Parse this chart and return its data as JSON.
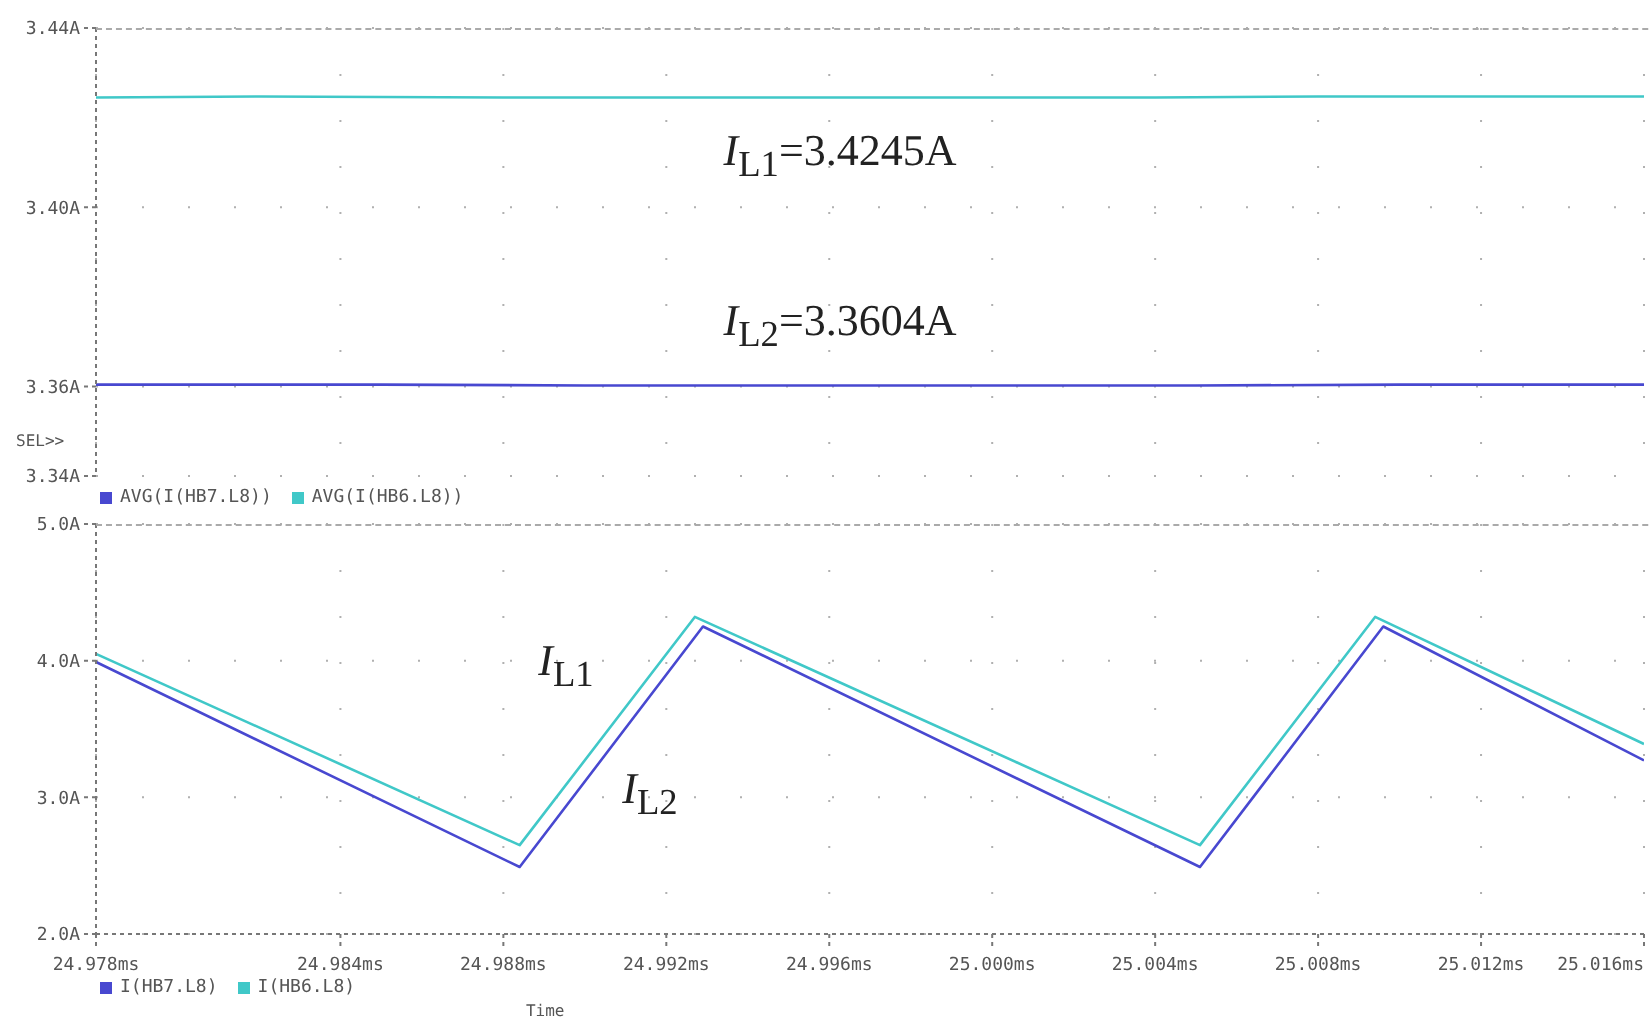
{
  "chart_data": [
    {
      "type": "line",
      "xlim": [
        24.978,
        25.016
      ],
      "ylim": [
        3.34,
        3.44
      ],
      "xticks": [
        24.978,
        24.984,
        24.988,
        24.992,
        24.996,
        25.0,
        25.004,
        25.008,
        25.012,
        25.016
      ],
      "yticks": [
        {
          "value": 3.34,
          "label": "3.34A"
        },
        {
          "value": 3.36,
          "label": "3.36A"
        },
        {
          "value": 3.4,
          "label": "3.40A"
        },
        {
          "value": 3.44,
          "label": "3.44A"
        }
      ],
      "tick_labels": "y",
      "grid": true,
      "legend": "bottom",
      "marker": "none",
      "line_style": "solid",
      "series": [
        {
          "name": "AVG(I(HB7.L8))",
          "color": "#4848d0",
          "x": [
            24.978,
            24.985,
            24.99,
            25.005,
            25.01,
            25.016
          ],
          "values": [
            3.3604,
            3.3604,
            3.3602,
            3.3602,
            3.3604,
            3.3604
          ]
        },
        {
          "name": "AVG(I(HB6.L8))",
          "color": "#40c8c8",
          "x": [
            24.978,
            24.982,
            24.988,
            25.004,
            25.008,
            25.016
          ],
          "values": [
            3.4245,
            3.4247,
            3.4245,
            3.4245,
            3.4247,
            3.4247
          ]
        }
      ],
      "annotations": [
        "I$_{L1}$=3.4245A",
        "I$_{L2}$=3.3604A",
        "SEL>>"
      ]
    },
    {
      "type": "line",
      "xlim": [
        24.978,
        25.016
      ],
      "ylim": [
        2.0,
        5.0
      ],
      "xticks": [
        {
          "value": 24.978,
          "label": "24.978ms"
        },
        {
          "value": 24.984,
          "label": "24.984ms"
        },
        {
          "value": 24.988,
          "label": "24.988ms"
        },
        {
          "value": 24.992,
          "label": "24.992ms"
        },
        {
          "value": 24.996,
          "label": "24.996ms"
        },
        {
          "value": 25.0,
          "label": "25.000ms"
        },
        {
          "value": 25.004,
          "label": "25.004ms"
        },
        {
          "value": 25.008,
          "label": "25.008ms"
        },
        {
          "value": 25.012,
          "label": "25.012ms"
        },
        {
          "value": 25.016,
          "label": "25.016ms"
        }
      ],
      "yticks": [
        {
          "value": 2.0,
          "label": "2.0A"
        },
        {
          "value": 3.0,
          "label": "3.0A"
        },
        {
          "value": 4.0,
          "label": "4.0A"
        },
        {
          "value": 5.0,
          "label": "5.0A"
        }
      ],
      "xlabel": "Time",
      "grid": true,
      "legend": "bottom",
      "marker": "none",
      "line_style": "solid",
      "series": [
        {
          "name": "I(HB7.L8)",
          "color": "#4848d0",
          "x": [
            24.978,
            24.9884,
            24.9929,
            25.0051,
            25.0096,
            25.016
          ],
          "values": [
            3.99,
            2.49,
            4.25,
            2.49,
            4.25,
            3.27
          ]
        },
        {
          "name": "I(HB6.L8)",
          "color": "#40c8c8",
          "x": [
            24.978,
            24.9884,
            24.9927,
            25.0051,
            25.0094,
            25.016
          ],
          "values": [
            4.05,
            2.65,
            4.32,
            2.65,
            4.32,
            3.39
          ]
        }
      ],
      "annotations": [
        "I$_{L1}$",
        "I$_{L2}$"
      ]
    }
  ]
}
